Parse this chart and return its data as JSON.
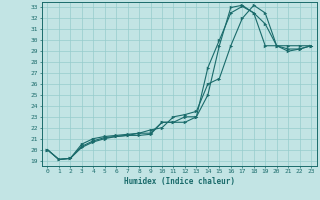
{
  "xlabel": "Humidex (Indice chaleur)",
  "ylabel": "",
  "bg_color": "#c2e4e4",
  "grid_color": "#96cccc",
  "line_color": "#1a6b6b",
  "xlim": [
    -0.5,
    23.5
  ],
  "ylim": [
    18.5,
    33.5
  ],
  "yticks": [
    19,
    20,
    21,
    22,
    23,
    24,
    25,
    26,
    27,
    28,
    29,
    30,
    31,
    32,
    33
  ],
  "xticks": [
    0,
    1,
    2,
    3,
    4,
    5,
    6,
    7,
    8,
    9,
    10,
    11,
    12,
    13,
    14,
    15,
    16,
    17,
    18,
    19,
    20,
    21,
    22,
    23
  ],
  "line1_x": [
    0,
    1,
    2,
    3,
    4,
    5,
    6,
    7,
    8,
    9,
    10,
    11,
    12,
    13,
    14,
    15,
    16,
    17,
    18,
    19,
    20,
    21,
    22,
    23
  ],
  "line1_y": [
    20.0,
    19.1,
    19.2,
    20.3,
    20.8,
    21.1,
    21.2,
    21.3,
    21.3,
    21.4,
    22.5,
    22.5,
    22.5,
    23.0,
    27.5,
    30.0,
    32.5,
    33.1,
    32.5,
    29.5,
    29.5,
    29.5,
    29.5,
    29.5
  ],
  "line2_x": [
    0,
    1,
    2,
    3,
    4,
    5,
    6,
    7,
    8,
    9,
    10,
    11,
    12,
    13,
    14,
    15,
    16,
    17,
    18,
    19,
    20,
    21,
    22,
    23
  ],
  "line2_y": [
    20.0,
    19.1,
    19.2,
    20.5,
    21.0,
    21.2,
    21.3,
    21.4,
    21.5,
    21.5,
    22.5,
    22.5,
    23.0,
    23.0,
    25.0,
    29.5,
    33.0,
    33.2,
    32.5,
    31.5,
    29.5,
    29.2,
    29.2,
    29.5
  ],
  "line3_x": [
    0,
    1,
    2,
    3,
    4,
    5,
    6,
    7,
    8,
    9,
    10,
    11,
    12,
    13,
    14,
    15,
    16,
    17,
    18,
    19,
    20,
    21,
    22,
    23
  ],
  "line3_y": [
    20.0,
    19.1,
    19.2,
    20.2,
    20.7,
    21.0,
    21.2,
    21.3,
    21.5,
    21.8,
    22.0,
    23.0,
    23.2,
    23.5,
    26.0,
    26.5,
    29.5,
    32.0,
    33.2,
    32.5,
    29.5,
    29.0,
    29.2,
    29.5
  ]
}
